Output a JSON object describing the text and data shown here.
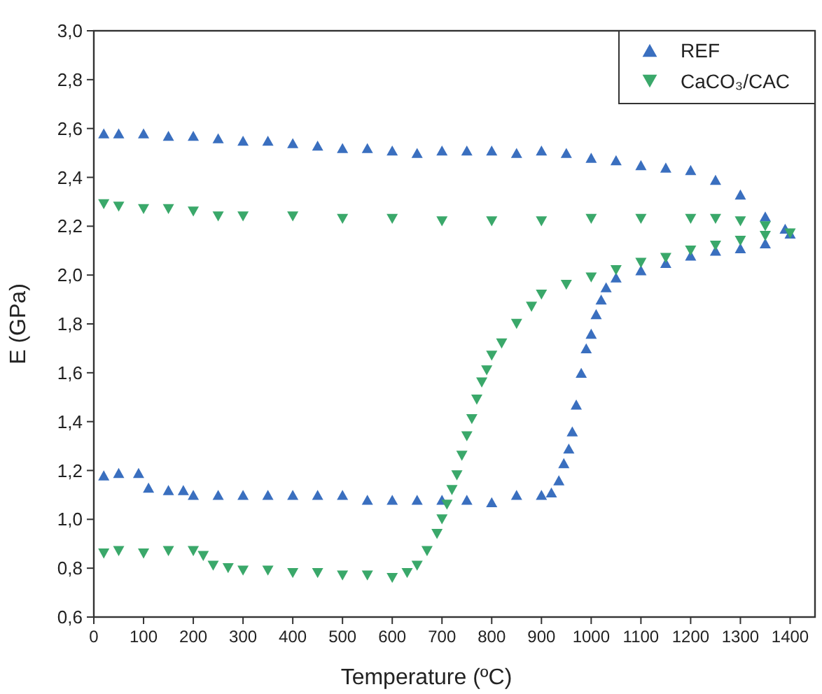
{
  "chart_data": {
    "type": "scatter",
    "xlabel": "Temperature (ºC)",
    "ylabel": "E (GPa)",
    "xlim": [
      0,
      1450
    ],
    "xticks": [
      0,
      100,
      200,
      300,
      400,
      500,
      600,
      700,
      800,
      900,
      1000,
      1100,
      1200,
      1300,
      1400
    ],
    "ylim": [
      0.6,
      3.0
    ],
    "yticks": [
      {
        "value": 0.6,
        "label": "0,6"
      },
      {
        "value": 0.8,
        "label": "0,8"
      },
      {
        "value": 1.0,
        "label": "1,0"
      },
      {
        "value": 1.2,
        "label": "1,2"
      },
      {
        "value": 1.4,
        "label": "1,4"
      },
      {
        "value": 1.6,
        "label": "1,6"
      },
      {
        "value": 1.8,
        "label": "1,8"
      },
      {
        "value": 2.0,
        "label": "2,0"
      },
      {
        "value": 2.2,
        "label": "2,2"
      },
      {
        "value": 2.4,
        "label": "2,4"
      },
      {
        "value": 2.6,
        "label": "2,6"
      },
      {
        "value": 2.8,
        "label": "2,8"
      },
      {
        "value": 3.0,
        "label": "3,0"
      }
    ],
    "grid": false,
    "legend": "top right",
    "series": [
      {
        "name": "REF",
        "color": "#3a6fbf",
        "marker": "triangle",
        "x": [
          20,
          50,
          90,
          110,
          150,
          180,
          200,
          250,
          300,
          350,
          400,
          450,
          500,
          550,
          600,
          650,
          700,
          750,
          800,
          850,
          900,
          920,
          935,
          945,
          955,
          962,
          970,
          980,
          990,
          1000,
          1010,
          1020,
          1030,
          1050,
          1100,
          1150,
          1200,
          1250,
          1300,
          1350,
          1400,
          1390,
          1350,
          1300,
          1250,
          1200,
          1150,
          1100,
          1050,
          1000,
          950,
          900,
          850,
          800,
          750,
          700,
          650,
          600,
          550,
          500,
          450,
          400,
          350,
          300,
          250,
          200,
          150,
          100,
          50,
          20
        ],
        "values": [
          1.18,
          1.19,
          1.19,
          1.13,
          1.12,
          1.12,
          1.1,
          1.1,
          1.1,
          1.1,
          1.1,
          1.1,
          1.1,
          1.08,
          1.08,
          1.08,
          1.08,
          1.08,
          1.07,
          1.1,
          1.1,
          1.11,
          1.16,
          1.23,
          1.29,
          1.36,
          1.47,
          1.6,
          1.7,
          1.76,
          1.84,
          1.9,
          1.95,
          1.99,
          2.02,
          2.05,
          2.08,
          2.1,
          2.11,
          2.13,
          2.17,
          2.19,
          2.24,
          2.33,
          2.39,
          2.43,
          2.44,
          2.45,
          2.47,
          2.48,
          2.5,
          2.51,
          2.5,
          2.51,
          2.51,
          2.51,
          2.5,
          2.51,
          2.52,
          2.52,
          2.53,
          2.54,
          2.55,
          2.55,
          2.56,
          2.57,
          2.57,
          2.58,
          2.58,
          2.58
        ]
      },
      {
        "name": "CaCO₃/CAC",
        "color": "#3aa86a",
        "marker": "triangle-down",
        "x": [
          20,
          50,
          100,
          150,
          200,
          220,
          240,
          270,
          300,
          350,
          400,
          450,
          500,
          550,
          600,
          630,
          650,
          670,
          690,
          700,
          710,
          720,
          730,
          740,
          750,
          760,
          770,
          780,
          790,
          800,
          820,
          850,
          880,
          900,
          950,
          1000,
          1050,
          1100,
          1150,
          1200,
          1250,
          1300,
          1350,
          1400,
          1350,
          1300,
          1250,
          1200,
          1100,
          1000,
          900,
          800,
          700,
          600,
          500,
          400,
          300,
          250,
          200,
          150,
          100,
          50,
          20
        ],
        "values": [
          0.86,
          0.87,
          0.86,
          0.87,
          0.87,
          0.85,
          0.81,
          0.8,
          0.79,
          0.79,
          0.78,
          0.78,
          0.77,
          0.77,
          0.76,
          0.78,
          0.81,
          0.87,
          0.94,
          1.0,
          1.06,
          1.12,
          1.18,
          1.26,
          1.34,
          1.41,
          1.49,
          1.56,
          1.61,
          1.67,
          1.72,
          1.8,
          1.87,
          1.92,
          1.96,
          1.99,
          2.02,
          2.05,
          2.07,
          2.1,
          2.12,
          2.14,
          2.16,
          2.17,
          2.2,
          2.22,
          2.23,
          2.23,
          2.23,
          2.23,
          2.22,
          2.22,
          2.22,
          2.23,
          2.23,
          2.24,
          2.24,
          2.24,
          2.26,
          2.27,
          2.27,
          2.28,
          2.29
        ]
      }
    ]
  }
}
